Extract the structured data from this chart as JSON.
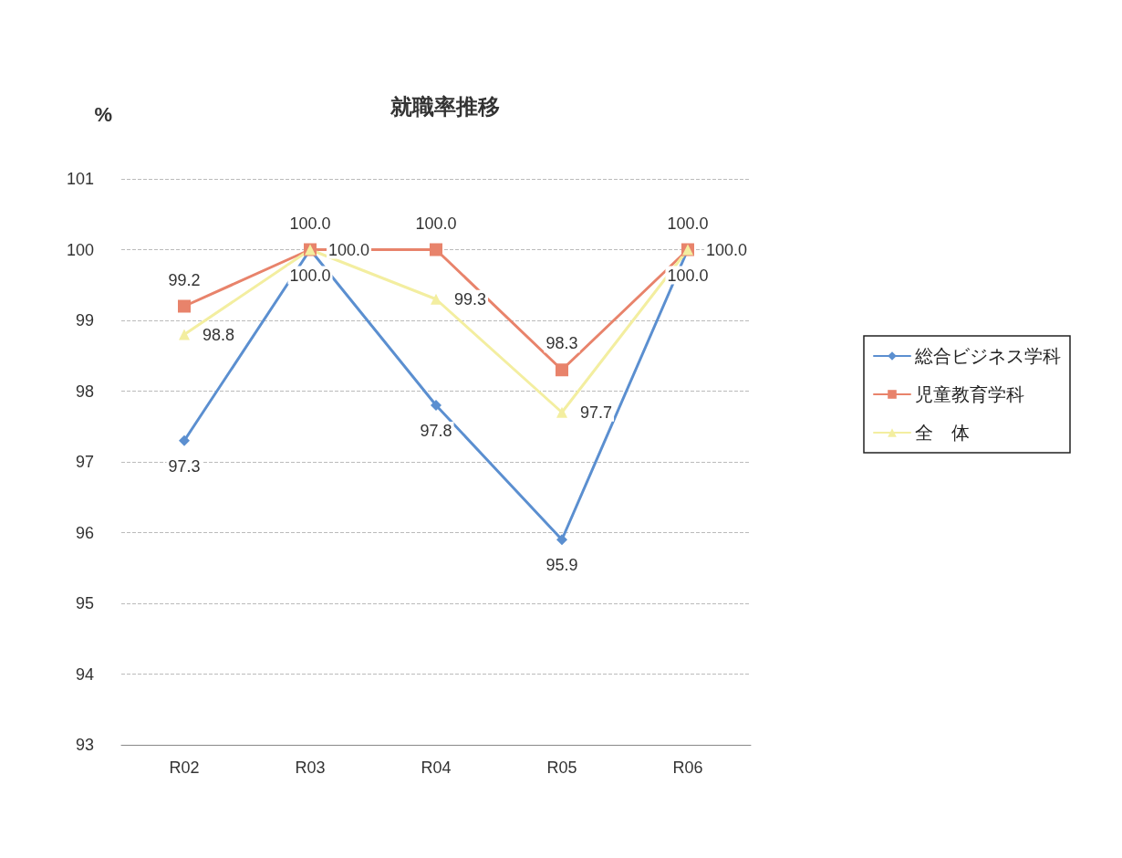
{
  "chart_data": {
    "type": "line",
    "title": "就職率推移",
    "ylabel": "%",
    "categories": [
      "R02",
      "R03",
      "R04",
      "R05",
      "R06"
    ],
    "series": [
      {
        "name": "総合ビジネス学科",
        "color": "#5b8fd0",
        "marker": "diamond",
        "values": [
          97.3,
          100.0,
          97.8,
          95.9,
          100.0
        ],
        "value_labels": [
          "97.3",
          "100.0",
          "97.8",
          "95.9",
          "100.0"
        ]
      },
      {
        "name": "児童教育学科",
        "color": "#e8836b",
        "marker": "square",
        "values": [
          99.2,
          100.0,
          100.0,
          98.3,
          100.0
        ],
        "value_labels": [
          "99.2",
          "100.0",
          "100.0",
          "98.3",
          "100.0"
        ]
      },
      {
        "name": "全　体",
        "color": "#f3eea0",
        "marker": "triangle",
        "values": [
          98.8,
          100.0,
          99.3,
          97.7,
          100.0
        ],
        "value_labels": [
          "98.8",
          "100.0",
          "99.3",
          "97.7",
          "100.0"
        ]
      }
    ],
    "ylim": [
      93,
      101
    ],
    "yticks": [
      93,
      94,
      95,
      96,
      97,
      98,
      99,
      100,
      101
    ],
    "grid": "y",
    "legend": "right",
    "line_style": "solid"
  }
}
